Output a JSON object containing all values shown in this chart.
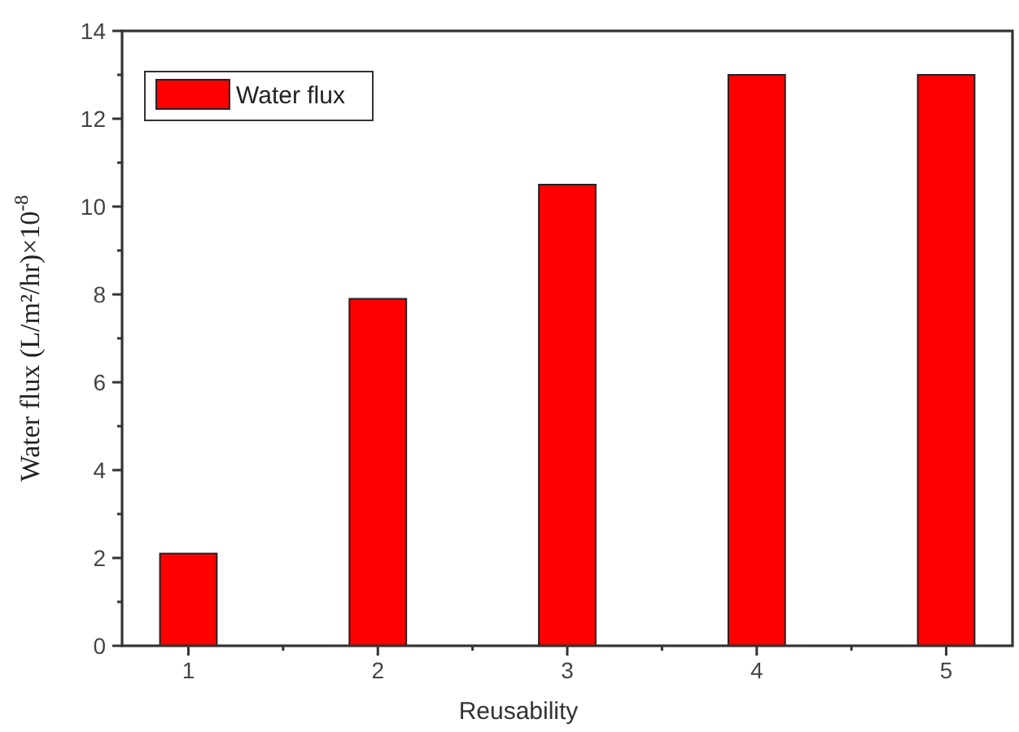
{
  "chart_data": {
    "type": "bar",
    "xlabel": "Reusability",
    "ylabel": "Water flux (L/m²/hr)×10$^{-8}$",
    "x": [
      1,
      2,
      3,
      4,
      5
    ],
    "series": [
      {
        "name": "Water flux",
        "color": "#ff0000",
        "values": [
          2.1,
          7.9,
          10.5,
          13,
          13
        ]
      }
    ],
    "xlim": [
      0.65,
      5.35
    ],
    "xticks": [
      1,
      {
        "value": 1.5,
        "label": null
      },
      2,
      {
        "value": 2.5,
        "label": null
      },
      3,
      {
        "value": 3.5,
        "label": null
      },
      4,
      {
        "value": 4.5,
        "label": null
      },
      5
    ],
    "ylim": [
      0,
      14
    ],
    "yticks": [
      0,
      {
        "value": 1,
        "label": null
      },
      2,
      {
        "value": 3,
        "label": null
      },
      4,
      {
        "value": 5,
        "label": null
      },
      6,
      {
        "value": 7,
        "label": null
      },
      8,
      {
        "value": 9,
        "label": null
      },
      10,
      {
        "value": 11,
        "label": null
      },
      12,
      {
        "value": 13,
        "label": null
      },
      14
    ],
    "grid": false,
    "legend": "top left"
  }
}
